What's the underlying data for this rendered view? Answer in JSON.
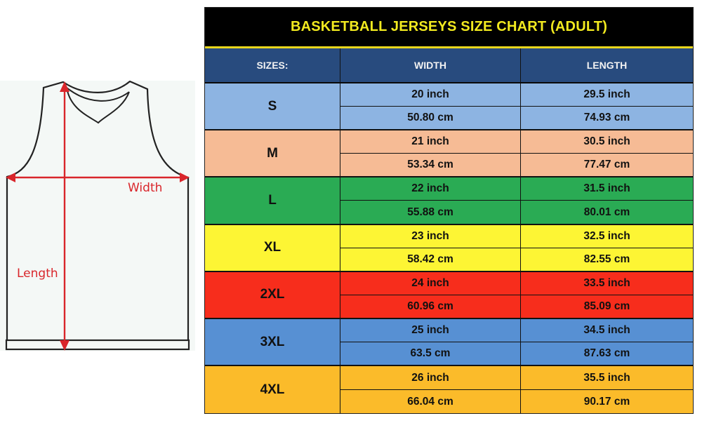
{
  "diagram": {
    "width_label": "Width",
    "length_label": "Length",
    "colors": {
      "arrow": "#d9262b",
      "outline": "#222222",
      "fill": "#f4f8f6"
    }
  },
  "chart": {
    "title": "BASKETBALL JERSEYS SIZE CHART (ADULT)",
    "headers": [
      "SIZES:",
      "WIDTH",
      "LENGTH"
    ],
    "colors": {
      "title_bg": "#000000",
      "title_text": "#f2ea1f",
      "header_bg": "#284b7e",
      "header_text": "#f2f2f2"
    },
    "sizes": [
      {
        "size": "S",
        "width_in": "20 inch",
        "length_in": "29.5 inch",
        "width_cm": "50.80 cm",
        "length_cm": "74.93 cm",
        "color": "#8db4e2"
      },
      {
        "size": "M",
        "width_in": "21 inch",
        "length_in": "30.5 inch",
        "width_cm": "53.34 cm",
        "length_cm": "77.47 cm",
        "color": "#f6bb95"
      },
      {
        "size": "L",
        "width_in": "22 inch",
        "length_in": "31.5 inch",
        "width_cm": "55.88 cm",
        "length_cm": "80.01 cm",
        "color": "#2aab54"
      },
      {
        "size": "XL",
        "width_in": "23 inch",
        "length_in": "32.5 inch",
        "width_cm": "58.42 cm",
        "length_cm": "82.55 cm",
        "color": "#fdf534"
      },
      {
        "size": "2XL",
        "width_in": "24 inch",
        "length_in": "33.5 inch",
        "width_cm": "60.96 cm",
        "length_cm": "85.09 cm",
        "color": "#f72d1c"
      },
      {
        "size": "3XL",
        "width_in": "25 inch",
        "length_in": "34.5 inch",
        "width_cm": "63.5 cm",
        "length_cm": "87.63 cm",
        "color": "#5790d3"
      },
      {
        "size": "4XL",
        "width_in": "26 inch",
        "length_in": "35.5 inch",
        "width_cm": "66.04 cm",
        "length_cm": "90.17 cm",
        "color": "#fbbb2a"
      }
    ]
  }
}
